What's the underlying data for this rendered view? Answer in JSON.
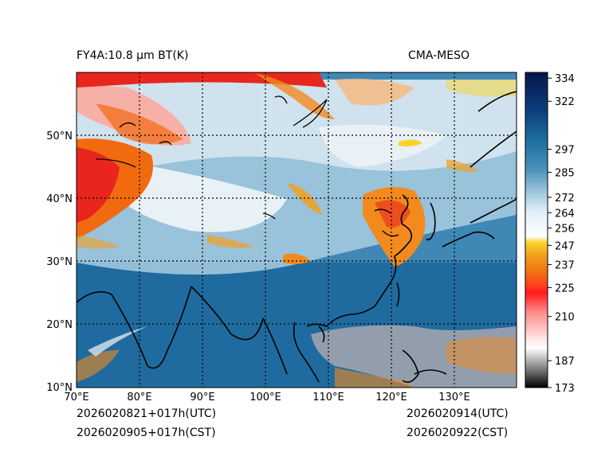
{
  "header": {
    "product_title": "FY4A:10.8 µm BT(K)",
    "model_name": "CMA-MESO"
  },
  "footer": {
    "init_utc": "2026020821+017h(UTC)",
    "init_cst": "2026020905+017h(CST)",
    "valid_utc": "2026020914(UTC)",
    "valid_cst": "2026020922(CST)"
  },
  "map": {
    "lon_labels": [
      "70°E",
      "80°E",
      "90°E",
      "100°E",
      "110°E",
      "120°E",
      "130°E"
    ],
    "lat_labels": [
      "10°N",
      "20°N",
      "30°N",
      "40°N",
      "50°N"
    ]
  },
  "colorbar": {
    "min": 173,
    "max": 337,
    "tick_labels": [
      "334",
      "322",
      "297",
      "285",
      "272",
      "264",
      "256",
      "247",
      "237",
      "225",
      "210",
      "187",
      "173"
    ]
  },
  "colors": {
    "cold_white": "#f5f7fa",
    "sea_blue": "#1f6b9f",
    "land_blue": "#3f87b5",
    "cloud_light": "#d8e6ef",
    "cloud_orange": "#f28a1e",
    "cloud_red": "#e8261e"
  }
}
